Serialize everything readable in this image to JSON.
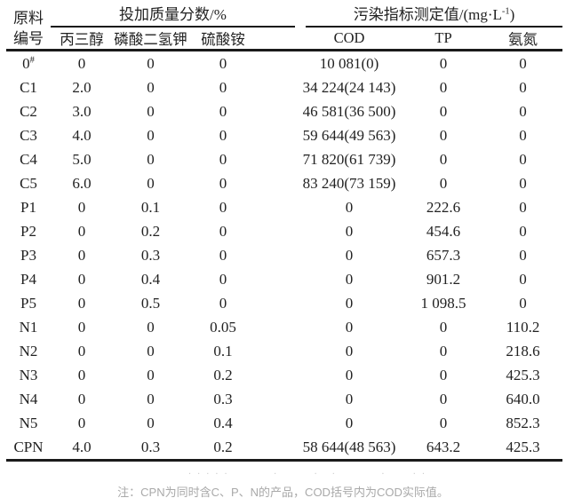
{
  "table": {
    "header": {
      "row_label_line1": "原料",
      "row_label_line2": "编号",
      "group_dose": "投加质量分数/%",
      "group_pollution_pre": "污染指标测定值/(mg·L",
      "group_pollution_sup": "-1",
      "group_pollution_post": ")",
      "columns": [
        "丙三醇",
        "磷酸二氢钾",
        "硫酸铵",
        "COD",
        "TP",
        "氨氮"
      ]
    },
    "rows": [
      {
        "id": "0#",
        "values": [
          "0",
          "0",
          "0",
          "10 081(0)",
          "0",
          "0"
        ]
      },
      {
        "id": "C1",
        "values": [
          "2.0",
          "0",
          "0",
          "34 224(24 143)",
          "0",
          "0"
        ]
      },
      {
        "id": "C2",
        "values": [
          "3.0",
          "0",
          "0",
          "46 581(36 500)",
          "0",
          "0"
        ]
      },
      {
        "id": "C3",
        "values": [
          "4.0",
          "0",
          "0",
          "59 644(49 563)",
          "0",
          "0"
        ]
      },
      {
        "id": "C4",
        "values": [
          "5.0",
          "0",
          "0",
          "71 820(61 739)",
          "0",
          "0"
        ]
      },
      {
        "id": "C5",
        "values": [
          "6.0",
          "0",
          "0",
          "83 240(73 159)",
          "0",
          "0"
        ]
      },
      {
        "id": "P1",
        "values": [
          "0",
          "0.1",
          "0",
          "0",
          "222.6",
          "0"
        ]
      },
      {
        "id": "P2",
        "values": [
          "0",
          "0.2",
          "0",
          "0",
          "454.6",
          "0"
        ]
      },
      {
        "id": "P3",
        "values": [
          "0",
          "0.3",
          "0",
          "0",
          "657.3",
          "0"
        ]
      },
      {
        "id": "P4",
        "values": [
          "0",
          "0.4",
          "0",
          "0",
          "901.2",
          "0"
        ]
      },
      {
        "id": "P5",
        "values": [
          "0",
          "0.5",
          "0",
          "0",
          "1 098.5",
          "0"
        ]
      },
      {
        "id": "N1",
        "values": [
          "0",
          "0",
          "0.05",
          "0",
          "0",
          "110.2"
        ]
      },
      {
        "id": "N2",
        "values": [
          "0",
          "0",
          "0.1",
          "0",
          "0",
          "218.6"
        ]
      },
      {
        "id": "N3",
        "values": [
          "0",
          "0",
          "0.2",
          "0",
          "0",
          "425.3"
        ]
      },
      {
        "id": "N4",
        "values": [
          "0",
          "0",
          "0.3",
          "0",
          "0",
          "640.0"
        ]
      },
      {
        "id": "N5",
        "values": [
          "0",
          "0",
          "0.4",
          "0",
          "0",
          "852.3"
        ]
      },
      {
        "id": "CPN",
        "values": [
          "4.0",
          "0.3",
          "0.2",
          "58 644(48 563)",
          "643.2",
          "425.3"
        ]
      }
    ]
  },
  "artifact_dots": ". . . . .          .        .   .          .      . .",
  "note": "注：CPN为同时含C、P、N的产品，COD括号内为COD实际值。",
  "colors": {
    "text": "#222222",
    "rule": "#1a1a1a",
    "note_text": "#a9a9a9"
  }
}
